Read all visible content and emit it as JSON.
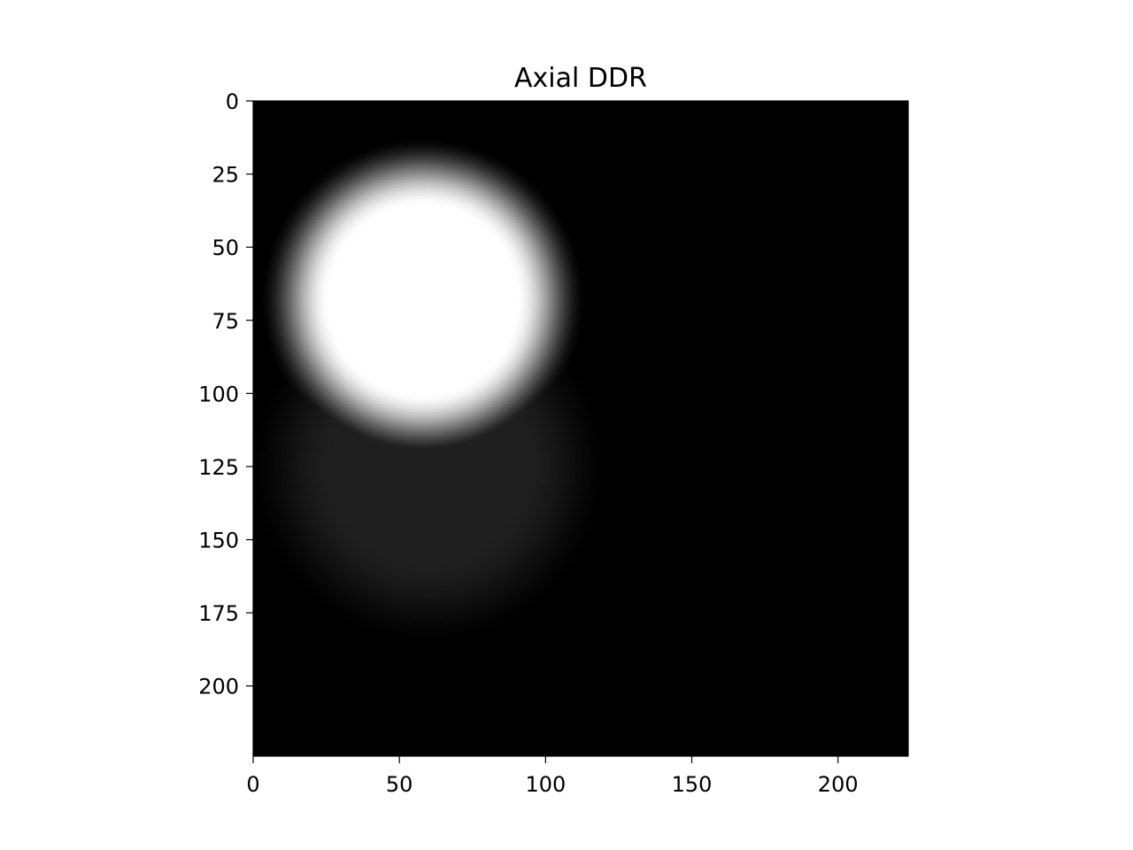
{
  "chart_data": {
    "type": "heatmap",
    "title": "Axial DDR",
    "xlabel": "",
    "ylabel": "",
    "colormap": "gray",
    "image_shape": [
      224,
      224
    ],
    "xlim": [
      0,
      224
    ],
    "ylim": [
      224,
      0
    ],
    "x_ticks": [
      0,
      50,
      100,
      150,
      200
    ],
    "y_ticks": [
      0,
      25,
      50,
      75,
      100,
      125,
      150,
      175,
      200
    ],
    "x_tick_labels": [
      "0",
      "50",
      "100",
      "150",
      "200"
    ],
    "y_tick_labels": [
      "0",
      "25",
      "50",
      "75",
      "100",
      "125",
      "150",
      "175",
      "200"
    ],
    "background_intensity": 0.0,
    "blobs": [
      {
        "cx": 58,
        "cy": 68,
        "radius": 44,
        "edge_width": 24,
        "intensity": 1.0
      },
      {
        "cx": 60,
        "cy": 125,
        "radius": 48,
        "edge_width": 30,
        "intensity": 0.12
      }
    ]
  }
}
